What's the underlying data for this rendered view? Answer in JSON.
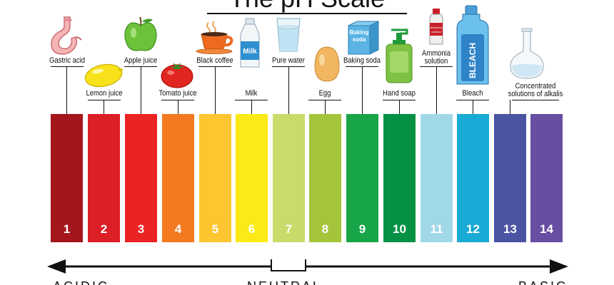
{
  "title": "The pH Scale",
  "scale": {
    "strips": [
      {
        "ph": "1",
        "color": "#A5161C"
      },
      {
        "ph": "2",
        "color": "#DC1E27"
      },
      {
        "ph": "3",
        "color": "#EC2325"
      },
      {
        "ph": "4",
        "color": "#F47A21"
      },
      {
        "ph": "5",
        "color": "#FDC52F"
      },
      {
        "ph": "6",
        "color": "#FBEA15"
      },
      {
        "ph": "7",
        "color": "#CADB6B"
      },
      {
        "ph": "8",
        "color": "#A3C43B"
      },
      {
        "ph": "9",
        "color": "#17A548"
      },
      {
        "ph": "10",
        "color": "#049143"
      },
      {
        "ph": "11",
        "color": "#A1D8E8"
      },
      {
        "ph": "12",
        "color": "#19AAD5"
      },
      {
        "ph": "13",
        "color": "#4B53A3"
      },
      {
        "ph": "14",
        "color": "#684EA2"
      }
    ]
  },
  "substances": {
    "gastric_acid": "Gastric acid",
    "lemon_juice": "Lemon juice",
    "apple_juice": "Apple juice",
    "tomato_juice": "Tomato juice",
    "black_coffee": "Black coffee",
    "milk": "Milk",
    "pure_water": "Pure water",
    "egg": "Egg",
    "baking_soda": "Baking soda",
    "hand_soap": "Hand soap",
    "ammonia_line1": "Ammonia",
    "ammonia_line2": "solution",
    "bleach": "Bleach",
    "alkalis_line1": "Concentrated",
    "alkalis_line2": "solutions of alkalis"
  },
  "icon_text": {
    "milk_carton": "Milk",
    "baking_soda_box_line1": "Baking",
    "baking_soda_box_line2": "soda",
    "ammonia_bottle_line1": "Ammonia",
    "ammonia_bottle_line2": "solution",
    "bleach_bottle": "BLEACH"
  },
  "footer": {
    "acidic": "ACIDIC",
    "neutral": "NEUTRAL",
    "basic": "BASIC"
  }
}
